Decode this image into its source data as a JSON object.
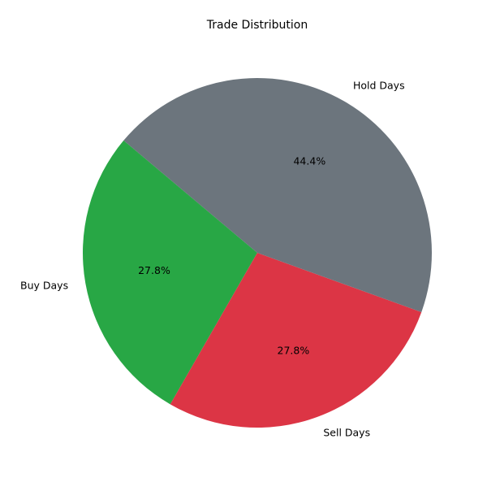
{
  "chart_data": {
    "type": "pie",
    "title": "Trade Distribution",
    "slices": [
      {
        "label": "Buy Days",
        "pct_label": "27.8%",
        "value": 27.8,
        "color": "#28a745"
      },
      {
        "label": "Sell Days",
        "pct_label": "27.8%",
        "value": 27.8,
        "color": "#dc3545"
      },
      {
        "label": "Hold Days",
        "pct_label": "44.4%",
        "value": 44.4,
        "color": "#6c757d"
      }
    ],
    "start_angle_deg": 140,
    "direction": "counterclockwise"
  }
}
